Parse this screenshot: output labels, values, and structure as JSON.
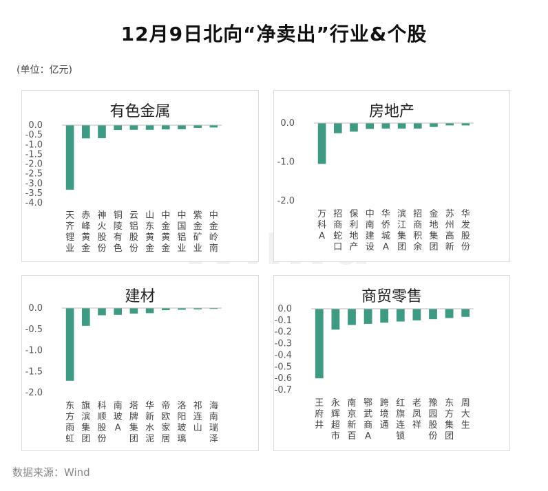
{
  "title": "12月9日北向“净卖出”行业&个股",
  "unit": "(单位：亿元)",
  "source": "数据来源：Wind",
  "watermark": "Win.d",
  "colors": {
    "bar": "#3f9a84"
  },
  "chart_data": [
    {
      "type": "bar",
      "title": "有色金属",
      "categories": [
        "天齐锂业",
        "赤峰黄金",
        "神火股份",
        "铜陵有色",
        "云铝股份",
        "山东黄金",
        "中金黄金",
        "中国铝业",
        "紫金矿业",
        "中金岭南"
      ],
      "values": [
        -3.32,
        -0.68,
        -0.67,
        -0.25,
        -0.24,
        -0.24,
        -0.22,
        -0.21,
        -0.14,
        -0.12
      ],
      "yticks": [
        "0.0",
        "-0.5",
        "-1.0",
        "-1.5",
        "-2.0",
        "-2.5",
        "-3.0",
        "-3.5",
        "-4.0"
      ],
      "ylim": [
        -4.0,
        0.0
      ],
      "legend": "none",
      "grid": false
    },
    {
      "type": "bar",
      "title": "房地产",
      "categories": [
        "万科A",
        "招商蛇口",
        "保利地产",
        "中南建设",
        "华侨城A",
        "滨江集团",
        "招商积余",
        "金地集团",
        "苏州高新",
        "华发股份"
      ],
      "values": [
        -1.05,
        -0.26,
        -0.22,
        -0.15,
        -0.14,
        -0.14,
        -0.14,
        -0.1,
        -0.06,
        -0.06
      ],
      "yticks": [
        "0.0",
        "-1.0",
        "-2.0"
      ],
      "ylim": [
        -2.0,
        0.0
      ],
      "legend": "none",
      "grid": false
    },
    {
      "type": "bar",
      "title": "建材",
      "categories": [
        "东方雨虹",
        "旗滨集团",
        "科顺股份",
        "南玻A",
        "塔牌集团",
        "华新水泥",
        "帝欧家居",
        "洛阳玻璃",
        "祁连山",
        "海南瑞泽"
      ],
      "values": [
        -1.72,
        -0.42,
        -0.17,
        -0.16,
        -0.13,
        -0.12,
        -0.05,
        -0.04,
        -0.03,
        -0.02
      ],
      "yticks": [
        "0.0",
        "-0.5",
        "-1.0",
        "-1.5",
        "-2.0"
      ],
      "ylim": [
        -2.0,
        0.0
      ],
      "legend": "none",
      "grid": false
    },
    {
      "type": "bar",
      "title": "商贸零售",
      "categories": [
        "王府井",
        "永辉超市",
        "南京新百",
        "鄂武商A",
        "跨境通",
        "红旗连锁",
        "老凤祥",
        "豫园股份",
        "东方集团",
        "周大生"
      ],
      "values": [
        -0.6,
        -0.18,
        -0.14,
        -0.13,
        -0.12,
        -0.11,
        -0.1,
        -0.09,
        -0.08,
        -0.07
      ],
      "yticks": [
        "0.0",
        "-0.1",
        "-0.2",
        "-0.3",
        "-0.4",
        "-0.5",
        "-0.6",
        "-0.7"
      ],
      "ylim": [
        -0.7,
        0.0
      ],
      "legend": "none",
      "grid": false
    }
  ]
}
